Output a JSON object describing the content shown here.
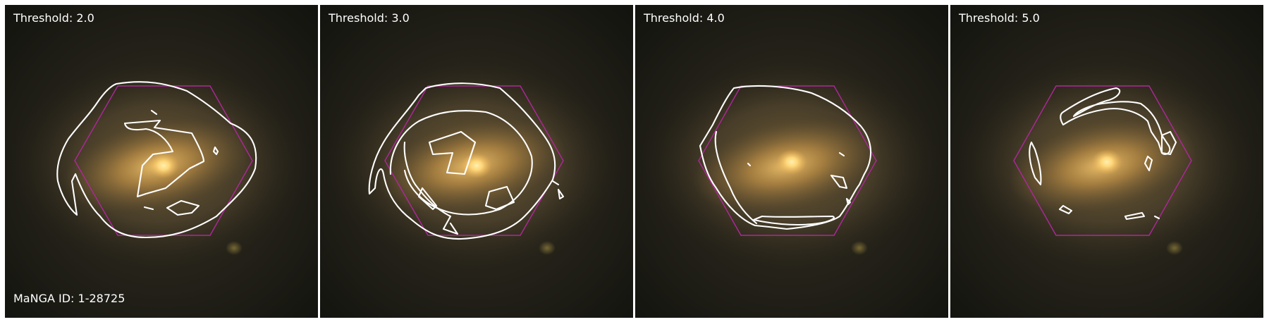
{
  "galaxy_id": "MaNGA ID: 1-28725",
  "panels": [
    {
      "label": "Threshold: 2.0"
    },
    {
      "label": "Threshold: 3.0"
    },
    {
      "label": "Threshold: 4.0"
    },
    {
      "label": "Threshold: 5.0"
    }
  ],
  "colors": {
    "background": "#ffffff",
    "sky": "#1c1a12",
    "galaxy_core": "#ffd77a",
    "galaxy_halo": "#8a6a34",
    "contour": "#ffffff",
    "ifu_footprint": "#b0279c",
    "label_text": "#ffffff"
  },
  "icons": {
    "footprint": "hexagon-outline",
    "contours": "white-contour-lines"
  }
}
